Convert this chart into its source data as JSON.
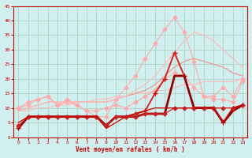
{
  "background_color": "#cff0ee",
  "grid_color": "#aaccbb",
  "xlabel": "Vent moyen/en rafales ( km/h )",
  "xlabel_color": "#cc0000",
  "tick_color": "#cc0000",
  "xlim": [
    -0.5,
    23.5
  ],
  "ylim": [
    0,
    45
  ],
  "yticks": [
    0,
    5,
    10,
    15,
    20,
    25,
    30,
    35,
    40,
    45
  ],
  "xticks": [
    0,
    1,
    2,
    3,
    4,
    5,
    6,
    7,
    8,
    9,
    10,
    11,
    12,
    13,
    14,
    15,
    16,
    17,
    18,
    19,
    20,
    21,
    22,
    23
  ],
  "series": [
    {
      "x": [
        0,
        1,
        2,
        3,
        4,
        5,
        6,
        7,
        8,
        9,
        10,
        11,
        12,
        13,
        14,
        15,
        16,
        17,
        18,
        19,
        20,
        21,
        22,
        23
      ],
      "y": [
        9,
        9,
        10,
        10,
        11,
        11,
        12,
        12,
        13,
        13,
        14,
        14,
        15,
        15,
        16,
        16,
        17,
        18,
        18,
        19,
        19,
        19,
        19,
        20
      ],
      "color": "#ffbbbb",
      "lw": 0.8,
      "marker": "None",
      "markersize": 0
    },
    {
      "x": [
        0,
        1,
        2,
        3,
        4,
        5,
        6,
        7,
        8,
        9,
        10,
        11,
        12,
        13,
        14,
        15,
        16,
        17,
        18,
        19,
        20,
        21,
        22,
        23
      ],
      "y": [
        10,
        11,
        13,
        14,
        11,
        13,
        11,
        9,
        9,
        10,
        11,
        10,
        12,
        14,
        16,
        20,
        22,
        21,
        17,
        14,
        14,
        17,
        14,
        20
      ],
      "color": "#ffaaaa",
      "lw": 0.8,
      "marker": "D",
      "markersize": 2.5
    },
    {
      "x": [
        0,
        1,
        2,
        3,
        4,
        5,
        6,
        7,
        8,
        9,
        10,
        11,
        12,
        13,
        14,
        15,
        16,
        17,
        18,
        19,
        20,
        21,
        22,
        23
      ],
      "y": [
        10,
        12,
        13,
        14,
        11,
        12,
        11,
        9,
        7,
        7,
        13,
        17,
        21,
        27,
        32,
        37,
        41,
        36,
        26,
        14,
        13,
        13,
        12,
        19
      ],
      "color": "#ffaaaa",
      "lw": 0.8,
      "marker": "D",
      "markersize": 2.5
    },
    {
      "x": [
        0,
        1,
        2,
        3,
        4,
        5,
        6,
        7,
        8,
        9,
        10,
        11,
        12,
        13,
        14,
        15,
        16,
        17,
        18,
        19,
        20,
        21,
        22,
        23
      ],
      "y": [
        9,
        10,
        11,
        12,
        12,
        12,
        12,
        12,
        12,
        12,
        13,
        14,
        15,
        16,
        18,
        21,
        24,
        26,
        27,
        26,
        25,
        24,
        22,
        21
      ],
      "color": "#ee9999",
      "lw": 0.9,
      "marker": "None",
      "markersize": 0
    },
    {
      "x": [
        0,
        1,
        2,
        3,
        4,
        5,
        6,
        7,
        8,
        9,
        10,
        11,
        12,
        13,
        14,
        15,
        16,
        17,
        18,
        19,
        20,
        21,
        22,
        23
      ],
      "y": [
        9,
        10,
        11,
        12,
        12,
        12,
        12,
        12,
        12,
        12,
        13,
        14,
        16,
        18,
        21,
        25,
        29,
        33,
        36,
        35,
        33,
        30,
        27,
        24
      ],
      "color": "#ffbbbb",
      "lw": 0.9,
      "marker": "None",
      "markersize": 0
    },
    {
      "x": [
        0,
        1,
        2,
        3,
        4,
        5,
        6,
        7,
        8,
        9,
        10,
        11,
        12,
        13,
        14,
        15,
        16,
        17,
        18,
        19,
        20,
        21,
        22,
        23
      ],
      "y": [
        3,
        7,
        7,
        7,
        7,
        7,
        7,
        7,
        7,
        4,
        7,
        7,
        8,
        9,
        15,
        20,
        29,
        21,
        10,
        10,
        10,
        5,
        10,
        11
      ],
      "color": "#cc0000",
      "lw": 1.2,
      "marker": "+",
      "markersize": 4
    },
    {
      "x": [
        0,
        1,
        2,
        3,
        4,
        5,
        6,
        7,
        8,
        9,
        10,
        11,
        12,
        13,
        14,
        15,
        16,
        17,
        18,
        19,
        20,
        21,
        22,
        23
      ],
      "y": [
        3,
        7,
        7,
        7,
        7,
        7,
        7,
        7,
        7,
        4,
        7,
        7,
        8,
        9,
        15,
        20,
        29,
        21,
        10,
        10,
        10,
        5,
        10,
        11
      ],
      "color": "#ee2222",
      "lw": 1.0,
      "marker": "None",
      "markersize": 0
    },
    {
      "x": [
        0,
        1,
        2,
        3,
        4,
        5,
        6,
        7,
        8,
        9,
        10,
        11,
        12,
        13,
        14,
        15,
        16,
        17,
        18,
        19,
        20,
        21,
        22,
        23
      ],
      "y": [
        3,
        7,
        7,
        7,
        7,
        7,
        7,
        7,
        7,
        4,
        7,
        7,
        7,
        8,
        8,
        8,
        21,
        21,
        10,
        10,
        10,
        5,
        9,
        11
      ],
      "color": "#990000",
      "lw": 2.0,
      "marker": "None",
      "markersize": 0
    },
    {
      "x": [
        0,
        1,
        2,
        3,
        4,
        5,
        6,
        7,
        8,
        9,
        10,
        11,
        12,
        13,
        14,
        15,
        16,
        17,
        18,
        19,
        20,
        21,
        22,
        23
      ],
      "y": [
        4,
        7,
        7,
        7,
        7,
        7,
        7,
        7,
        7,
        4,
        7,
        7,
        7,
        8,
        8,
        8,
        10,
        10,
        10,
        10,
        10,
        10,
        10,
        11
      ],
      "color": "#cc2222",
      "lw": 0.9,
      "marker": "D",
      "markersize": 2.5
    },
    {
      "x": [
        0,
        1,
        2,
        3,
        4,
        5,
        6,
        7,
        8,
        9,
        10,
        11,
        12,
        13,
        14,
        15,
        16,
        17,
        18,
        19,
        20,
        21,
        22,
        23
      ],
      "y": [
        5,
        7,
        7,
        7,
        7,
        7,
        7,
        7,
        7,
        3,
        5,
        7,
        8,
        9,
        10,
        10,
        10,
        10,
        10,
        10,
        10,
        5,
        10,
        11
      ],
      "color": "#cc0000",
      "lw": 0.9,
      "marker": "None",
      "markersize": 0
    }
  ]
}
